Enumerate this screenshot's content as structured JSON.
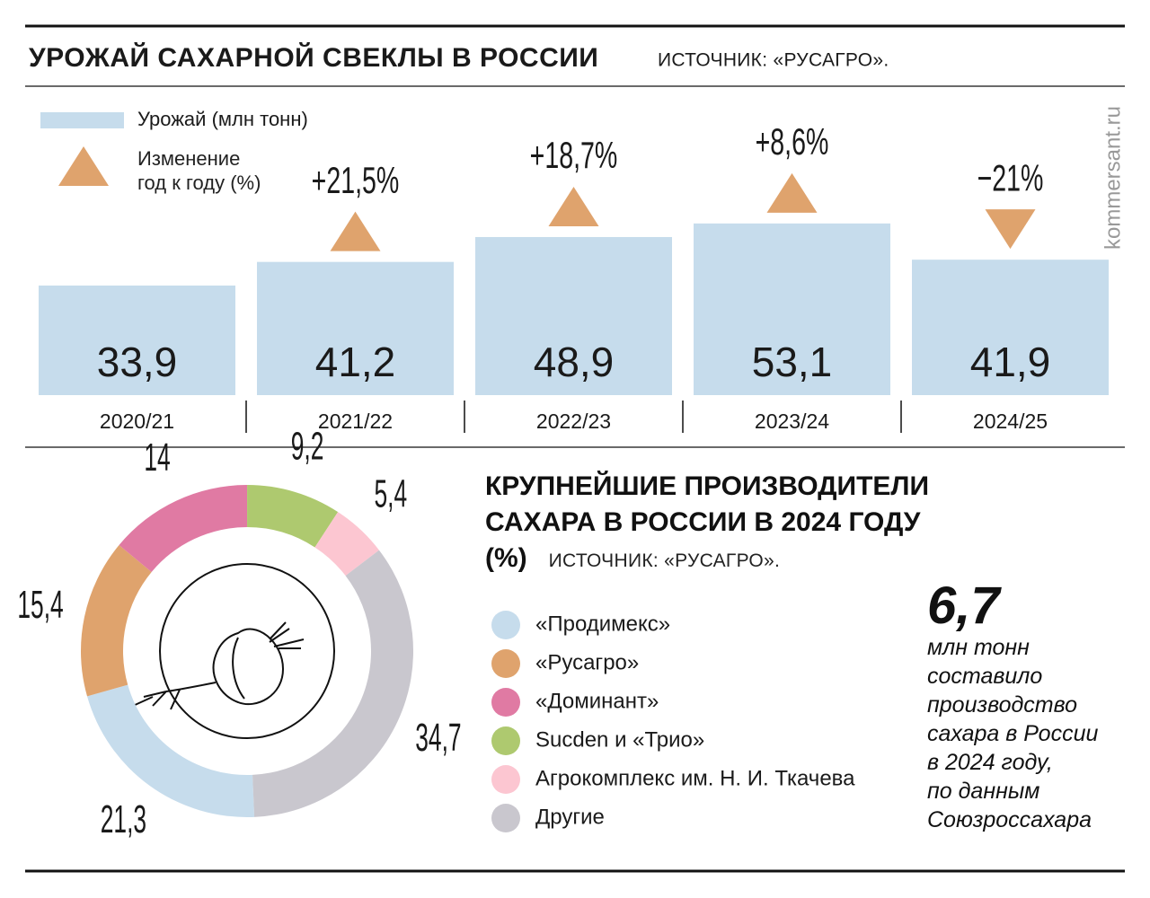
{
  "watermark": "kommersant.ru",
  "chart_data": [
    {
      "type": "bar",
      "title": "УРОЖАЙ САХАРНОЙ СВЕКЛЫ В РОССИИ",
      "source": "ИСТОЧНИК: «РУСАГРО».",
      "categories": [
        "2020/21",
        "2021/22",
        "2022/23",
        "2023/24",
        "2024/25"
      ],
      "series": [
        {
          "name": "Урожай (млн тонн)",
          "color": "#c6dcec",
          "values": [
            33.9,
            41.2,
            48.9,
            53.1,
            41.9
          ],
          "value_labels": [
            "33,9",
            "41,2",
            "48,9",
            "53,1",
            "41,9"
          ]
        },
        {
          "name": "Изменение год к году (%)",
          "color": "#dfa36d",
          "marker": "triangle",
          "values": [
            null,
            21.5,
            18.7,
            8.6,
            -21
          ],
          "value_labels": [
            null,
            "+21,5%",
            "+18,7%",
            "+8,6%",
            "−21%"
          ]
        }
      ]
    },
    {
      "type": "pie",
      "title": "КРУПНЕЙШИЕ ПРОИЗВОДИТЕЛИ САХАРА В РОССИИ В 2024 ГОДУ (%)",
      "source": "ИСТОЧНИК: «РУСАГРО».",
      "categories": [
        "«Продимекс»",
        "«Русагро»",
        "«Доминант»",
        "Sucden и «Трио»",
        "Агрокомплекс им. Н. И. Ткачева",
        "Другие"
      ],
      "values": [
        21.3,
        15.4,
        14,
        9.2,
        5.4,
        34.7
      ],
      "value_labels": [
        "21,3",
        "15,4",
        "14",
        "9,2",
        "5,4",
        "34,7"
      ],
      "colors": [
        "#c6dcec",
        "#dfa36d",
        "#e07aa3",
        "#aec96f",
        "#fcc6d1",
        "#c9c7ce"
      ],
      "callout": {
        "figure": "6,7",
        "lines": [
          "млн тонн",
          "составило",
          "производство",
          "сахара в России",
          "в 2024 году,",
          "по данным",
          "Союзроссахара"
        ]
      }
    }
  ]
}
